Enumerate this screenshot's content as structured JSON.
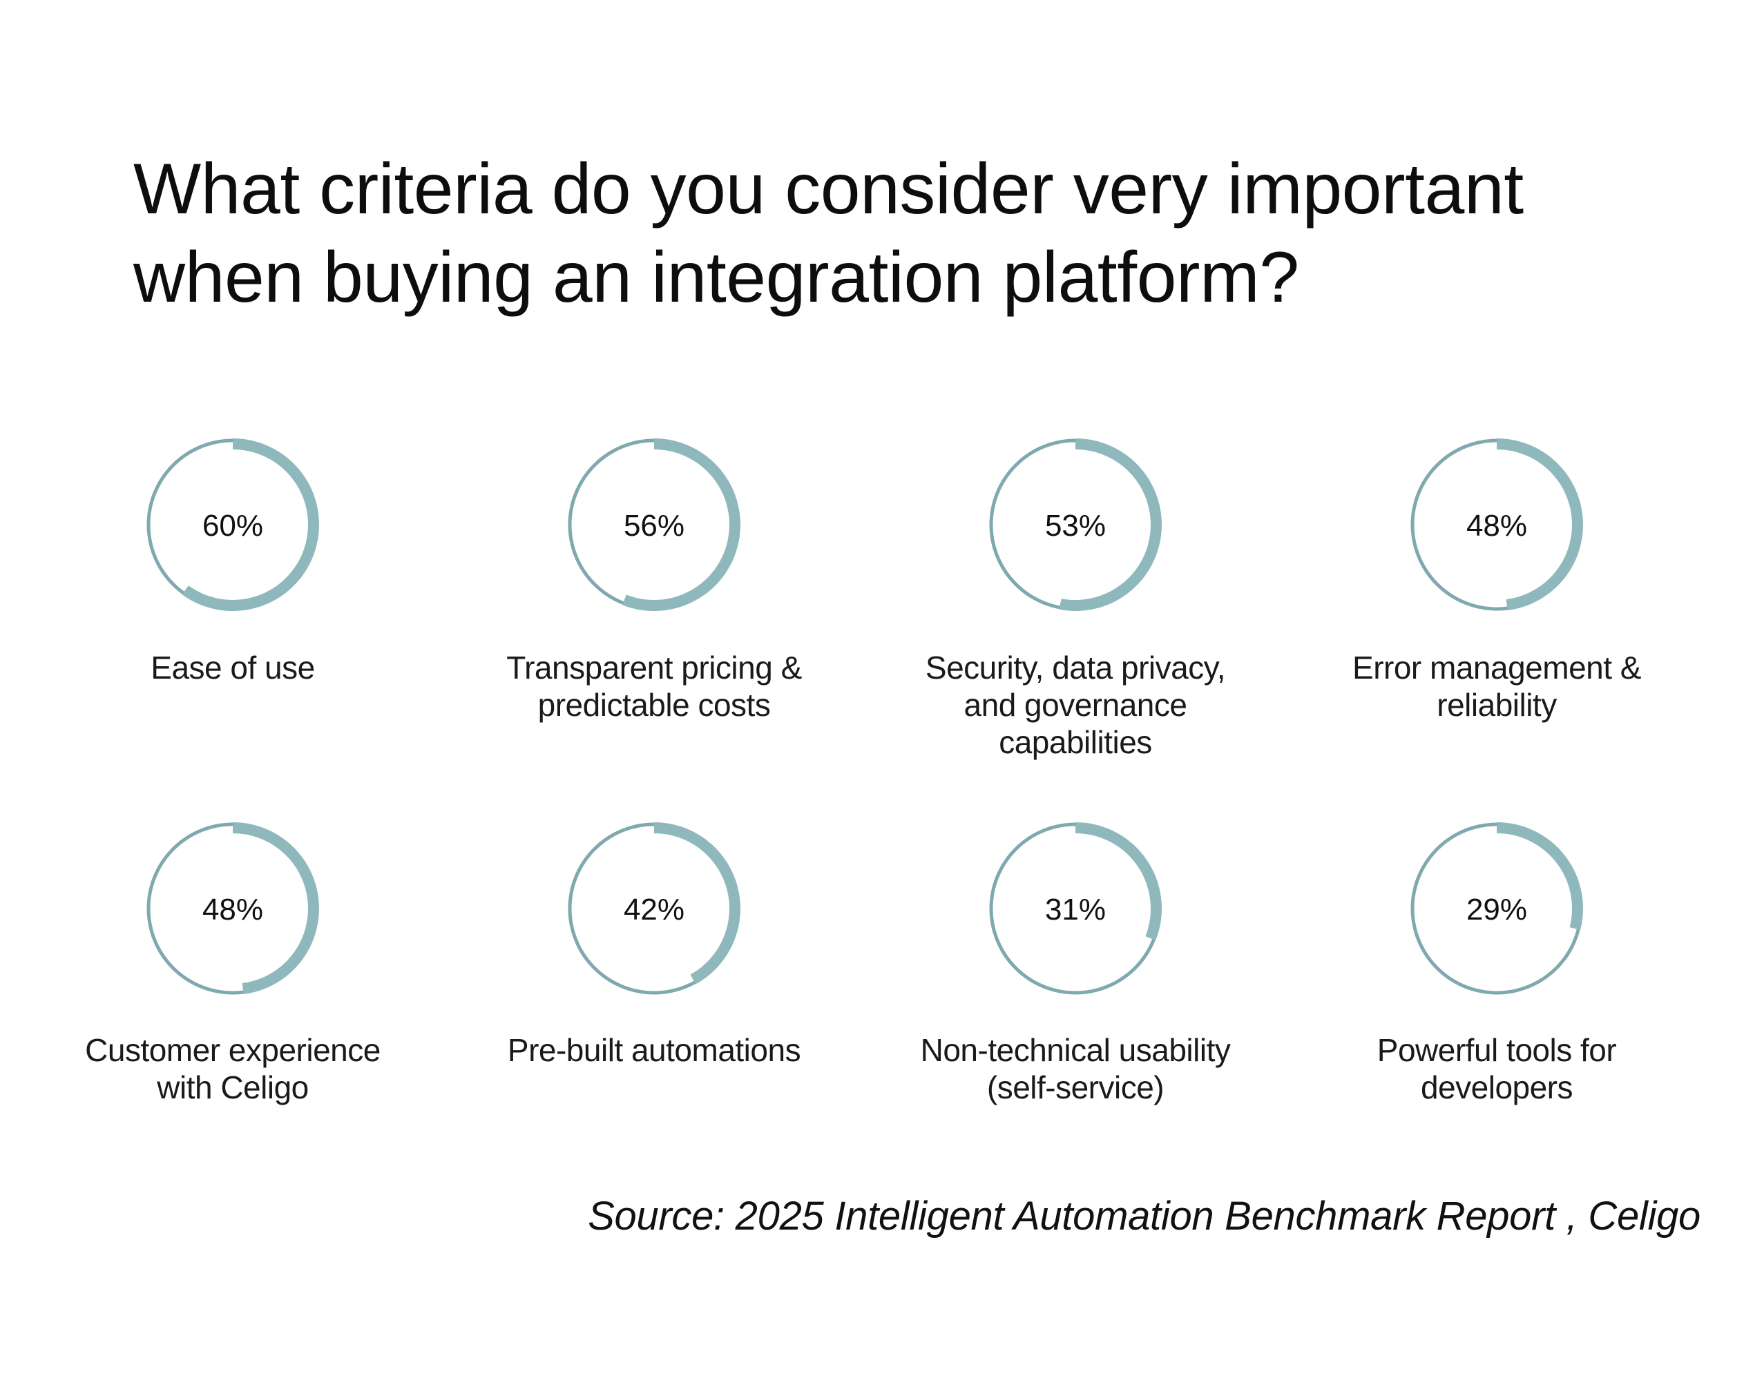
{
  "title_lines": [
    "What criteria do you consider very important",
    "when buying an integration platform?"
  ],
  "source": "Source: 2025 Intelligent Automation Benchmark Report , Celigo",
  "colors": {
    "arc": "#8fb8bd",
    "ring": "#7fa9ae",
    "text": "#111111"
  },
  "chart_data": {
    "type": "pie",
    "subtype": "donut-grid",
    "title": "What criteria do you consider very important when buying an integration platform?",
    "unit": "%",
    "items": [
      {
        "label_lines": [
          "Ease of use"
        ],
        "value": 60,
        "display": "60%"
      },
      {
        "label_lines": [
          "Transparent pricing &",
          "predictable costs"
        ],
        "value": 56,
        "display": "56%"
      },
      {
        "label_lines": [
          "Security, data privacy,",
          "and governance",
          "capabilities"
        ],
        "value": 53,
        "display": "53%"
      },
      {
        "label_lines": [
          "Error management &",
          "reliability"
        ],
        "value": 48,
        "display": "48%"
      },
      {
        "label_lines": [
          "Customer experience",
          "with Celigo"
        ],
        "value": 48,
        "display": "48%"
      },
      {
        "label_lines": [
          "Pre-built automations"
        ],
        "value": 42,
        "display": "42%"
      },
      {
        "label_lines": [
          "Non-technical usability",
          "(self-service)"
        ],
        "value": 31,
        "display": "31%"
      },
      {
        "label_lines": [
          "Powerful tools for",
          "developers"
        ],
        "value": 29,
        "display": "29%"
      }
    ]
  }
}
